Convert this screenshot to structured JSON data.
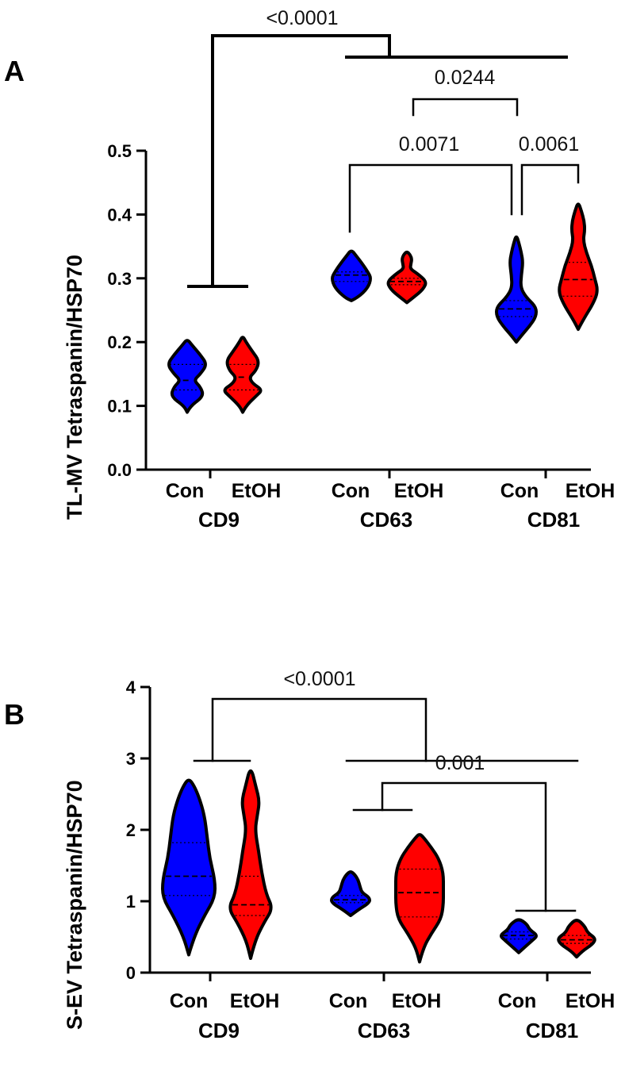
{
  "chart_data": [
    {
      "panel": "A",
      "type": "violin",
      "ylabel": "TL-MV Tetraspanin/HSP70",
      "ylim": [
        0,
        0.5
      ],
      "yticks": [
        "0.0",
        "0.1",
        "0.2",
        "0.3",
        "0.4",
        "0.5"
      ],
      "conditions": [
        "Con",
        "EtOH"
      ],
      "groups": [
        "CD9",
        "CD63",
        "CD81"
      ],
      "colors": {
        "Con": "#0000ff",
        "EtOH": "#ff0000"
      },
      "violins": [
        {
          "group": "CD9",
          "condition": "Con",
          "min": 0.09,
          "max": 0.205,
          "median": 0.14,
          "q1": 0.125,
          "q3": 0.165,
          "shape": [
            [
              0.09,
              0
            ],
            [
              0.1,
              1
            ],
            [
              0.115,
              5
            ],
            [
              0.13,
              4
            ],
            [
              0.14,
              2
            ],
            [
              0.15,
              4
            ],
            [
              0.165,
              6
            ],
            [
              0.18,
              4
            ],
            [
              0.195,
              1.5
            ],
            [
              0.205,
              0
            ]
          ]
        },
        {
          "group": "CD9",
          "condition": "EtOH",
          "min": 0.09,
          "max": 0.21,
          "median": 0.145,
          "q1": 0.125,
          "q3": 0.165,
          "shape": [
            [
              0.09,
              0
            ],
            [
              0.1,
              1
            ],
            [
              0.115,
              4
            ],
            [
              0.125,
              6
            ],
            [
              0.135,
              3
            ],
            [
              0.145,
              2
            ],
            [
              0.155,
              4
            ],
            [
              0.17,
              5
            ],
            [
              0.185,
              3
            ],
            [
              0.2,
              1
            ],
            [
              0.21,
              0
            ]
          ]
        },
        {
          "group": "CD63",
          "condition": "Con",
          "min": 0.265,
          "max": 0.345,
          "median": 0.305,
          "q1": 0.295,
          "q3": 0.31,
          "shape": [
            [
              0.265,
              0
            ],
            [
              0.27,
              2
            ],
            [
              0.285,
              5
            ],
            [
              0.3,
              6
            ],
            [
              0.31,
              5
            ],
            [
              0.325,
              3
            ],
            [
              0.335,
              1.5
            ],
            [
              0.345,
              0
            ]
          ]
        },
        {
          "group": "CD63",
          "condition": "EtOH",
          "min": 0.262,
          "max": 0.342,
          "median": 0.295,
          "q1": 0.29,
          "q3": 0.3,
          "shape": [
            [
              0.262,
              0
            ],
            [
              0.27,
              2
            ],
            [
              0.283,
              5
            ],
            [
              0.295,
              6
            ],
            [
              0.308,
              3
            ],
            [
              0.315,
              1
            ],
            [
              0.322,
              1.2
            ],
            [
              0.33,
              1.5
            ],
            [
              0.337,
              1
            ],
            [
              0.342,
              0
            ]
          ]
        },
        {
          "group": "CD81",
          "condition": "Con",
          "min": 0.2,
          "max": 0.368,
          "median": 0.252,
          "q1": 0.24,
          "q3": 0.265,
          "shape": [
            [
              0.2,
              0
            ],
            [
              0.21,
              1.5
            ],
            [
              0.225,
              4
            ],
            [
              0.24,
              6
            ],
            [
              0.255,
              6
            ],
            [
              0.27,
              3
            ],
            [
              0.285,
              1.3
            ],
            [
              0.305,
              1.5
            ],
            [
              0.325,
              2
            ],
            [
              0.34,
              1.5
            ],
            [
              0.355,
              0.8
            ],
            [
              0.368,
              0
            ]
          ]
        },
        {
          "group": "CD81",
          "condition": "EtOH",
          "min": 0.22,
          "max": 0.42,
          "median": 0.298,
          "q1": 0.272,
          "q3": 0.325,
          "shape": [
            [
              0.22,
              0
            ],
            [
              0.235,
              1.5
            ],
            [
              0.26,
              4.5
            ],
            [
              0.28,
              6
            ],
            [
              0.3,
              5
            ],
            [
              0.32,
              4
            ],
            [
              0.34,
              2.5
            ],
            [
              0.36,
              1.5
            ],
            [
              0.375,
              2
            ],
            [
              0.39,
              1.8
            ],
            [
              0.405,
              1
            ],
            [
              0.42,
              0
            ]
          ]
        }
      ],
      "annotations": [
        {
          "label": "<0.0001"
        },
        {
          "label": "0.0244"
        },
        {
          "label": "0.0071"
        },
        {
          "label": "0.0061"
        }
      ]
    },
    {
      "panel": "B",
      "type": "violin",
      "ylabel": "S-EV Tetraspanin/HSP70",
      "ylim": [
        0,
        4
      ],
      "yticks": [
        "0",
        "1",
        "2",
        "3",
        "4"
      ],
      "conditions": [
        "Con",
        "EtOH"
      ],
      "groups": [
        "CD9",
        "CD63",
        "CD81"
      ],
      "colors": {
        "Con": "#0000ff",
        "EtOH": "#ff0000"
      },
      "violins": [
        {
          "group": "CD9",
          "condition": "Con",
          "min": 0.25,
          "max": 2.72,
          "median": 1.35,
          "q1": 1.08,
          "q3": 1.82,
          "shape": [
            [
              0.25,
              0
            ],
            [
              0.5,
              1
            ],
            [
              0.8,
              3
            ],
            [
              1.05,
              5
            ],
            [
              1.3,
              5
            ],
            [
              1.6,
              4
            ],
            [
              1.9,
              3.5
            ],
            [
              2.2,
              3
            ],
            [
              2.45,
              2
            ],
            [
              2.62,
              1
            ],
            [
              2.72,
              0
            ]
          ]
        },
        {
          "group": "CD9",
          "condition": "EtOH",
          "min": 0.2,
          "max": 2.9,
          "median": 0.95,
          "q1": 0.8,
          "q3": 1.35,
          "shape": [
            [
              0.2,
              0
            ],
            [
              0.45,
              1
            ],
            [
              0.7,
              3
            ],
            [
              0.9,
              5
            ],
            [
              1.1,
              3.5
            ],
            [
              1.4,
              2.5
            ],
            [
              1.7,
              1.8
            ],
            [
              2.0,
              1
            ],
            [
              2.2,
              1.5
            ],
            [
              2.4,
              2
            ],
            [
              2.6,
              1.2
            ],
            [
              2.9,
              0
            ]
          ]
        },
        {
          "group": "CD63",
          "condition": "Con",
          "min": 0.8,
          "max": 1.42,
          "median": 1.02,
          "q1": 0.98,
          "q3": 1.08,
          "shape": [
            [
              0.8,
              0
            ],
            [
              0.88,
              2
            ],
            [
              0.98,
              5
            ],
            [
              1.05,
              5
            ],
            [
              1.12,
              3
            ],
            [
              1.2,
              2.5
            ],
            [
              1.3,
              2
            ],
            [
              1.38,
              1
            ],
            [
              1.42,
              0
            ]
          ]
        },
        {
          "group": "CD63",
          "condition": "EtOH",
          "min": 0.15,
          "max": 1.95,
          "median": 1.12,
          "q1": 0.78,
          "q3": 1.45,
          "shape": [
            [
              0.15,
              0
            ],
            [
              0.35,
              0.8
            ],
            [
              0.55,
              2.5
            ],
            [
              0.75,
              4.5
            ],
            [
              0.95,
              5
            ],
            [
              1.15,
              5
            ],
            [
              1.4,
              5
            ],
            [
              1.6,
              4
            ],
            [
              1.75,
              2.5
            ],
            [
              1.88,
              1
            ],
            [
              1.95,
              0
            ]
          ]
        },
        {
          "group": "CD81",
          "condition": "Con",
          "min": 0.28,
          "max": 0.76,
          "median": 0.52,
          "q1": 0.47,
          "q3": 0.57,
          "shape": [
            [
              0.28,
              0
            ],
            [
              0.35,
              1
            ],
            [
              0.45,
              2.5
            ],
            [
              0.52,
              3.5
            ],
            [
              0.6,
              2
            ],
            [
              0.68,
              1.5
            ],
            [
              0.76,
              0
            ]
          ]
        },
        {
          "group": "CD81",
          "condition": "EtOH",
          "min": 0.22,
          "max": 0.76,
          "median": 0.46,
          "q1": 0.41,
          "q3": 0.52,
          "shape": [
            [
              0.22,
              0
            ],
            [
              0.3,
              1
            ],
            [
              0.4,
              3
            ],
            [
              0.48,
              3.5
            ],
            [
              0.56,
              2
            ],
            [
              0.65,
              1.5
            ],
            [
              0.76,
              0
            ]
          ]
        }
      ],
      "annotations": [
        {
          "label": "<0.0001"
        },
        {
          "label": "0.001"
        }
      ]
    }
  ]
}
